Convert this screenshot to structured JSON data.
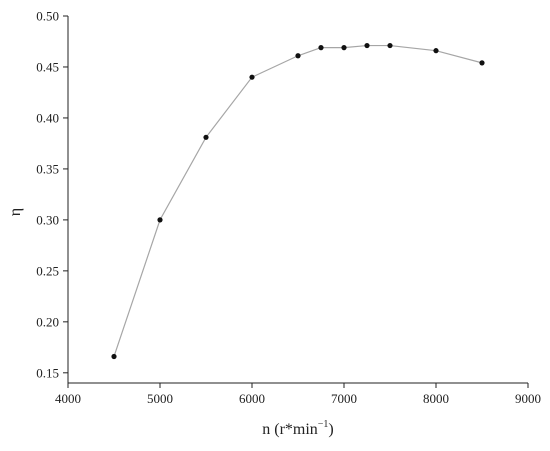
{
  "chart_data": {
    "type": "line",
    "xlabel": "n (r*min",
    "xlabel_superscript": "−1",
    "xlabel_suffix": ")",
    "ylabel": "η",
    "xlim": [
      4000,
      9000
    ],
    "ylim": [
      0.14,
      0.5
    ],
    "x_ticks": [
      4000,
      5000,
      6000,
      7000,
      8000,
      9000
    ],
    "y_ticks": [
      0.15,
      0.2,
      0.25,
      0.3,
      0.35,
      0.4,
      0.45,
      0.5
    ],
    "x_tick_labels": [
      "4000",
      "5000",
      "6000",
      "7000",
      "8000",
      "9000"
    ],
    "y_tick_labels": [
      "0.15",
      "0.20",
      "0.25",
      "0.30",
      "0.35",
      "0.40",
      "0.45",
      "0.50"
    ],
    "grid": false,
    "legend": "none",
    "colors": {
      "line": "#a6a6a6",
      "marker": "#111111",
      "axis": "#222222"
    },
    "series": [
      {
        "x": [
          4500,
          5000,
          5500,
          6000,
          6500,
          6750,
          7000,
          7250,
          7500,
          8000,
          8500
        ],
        "y": [
          0.166,
          0.3,
          0.381,
          0.44,
          0.461,
          0.469,
          0.469,
          0.471,
          0.471,
          0.466,
          0.454
        ]
      }
    ]
  }
}
